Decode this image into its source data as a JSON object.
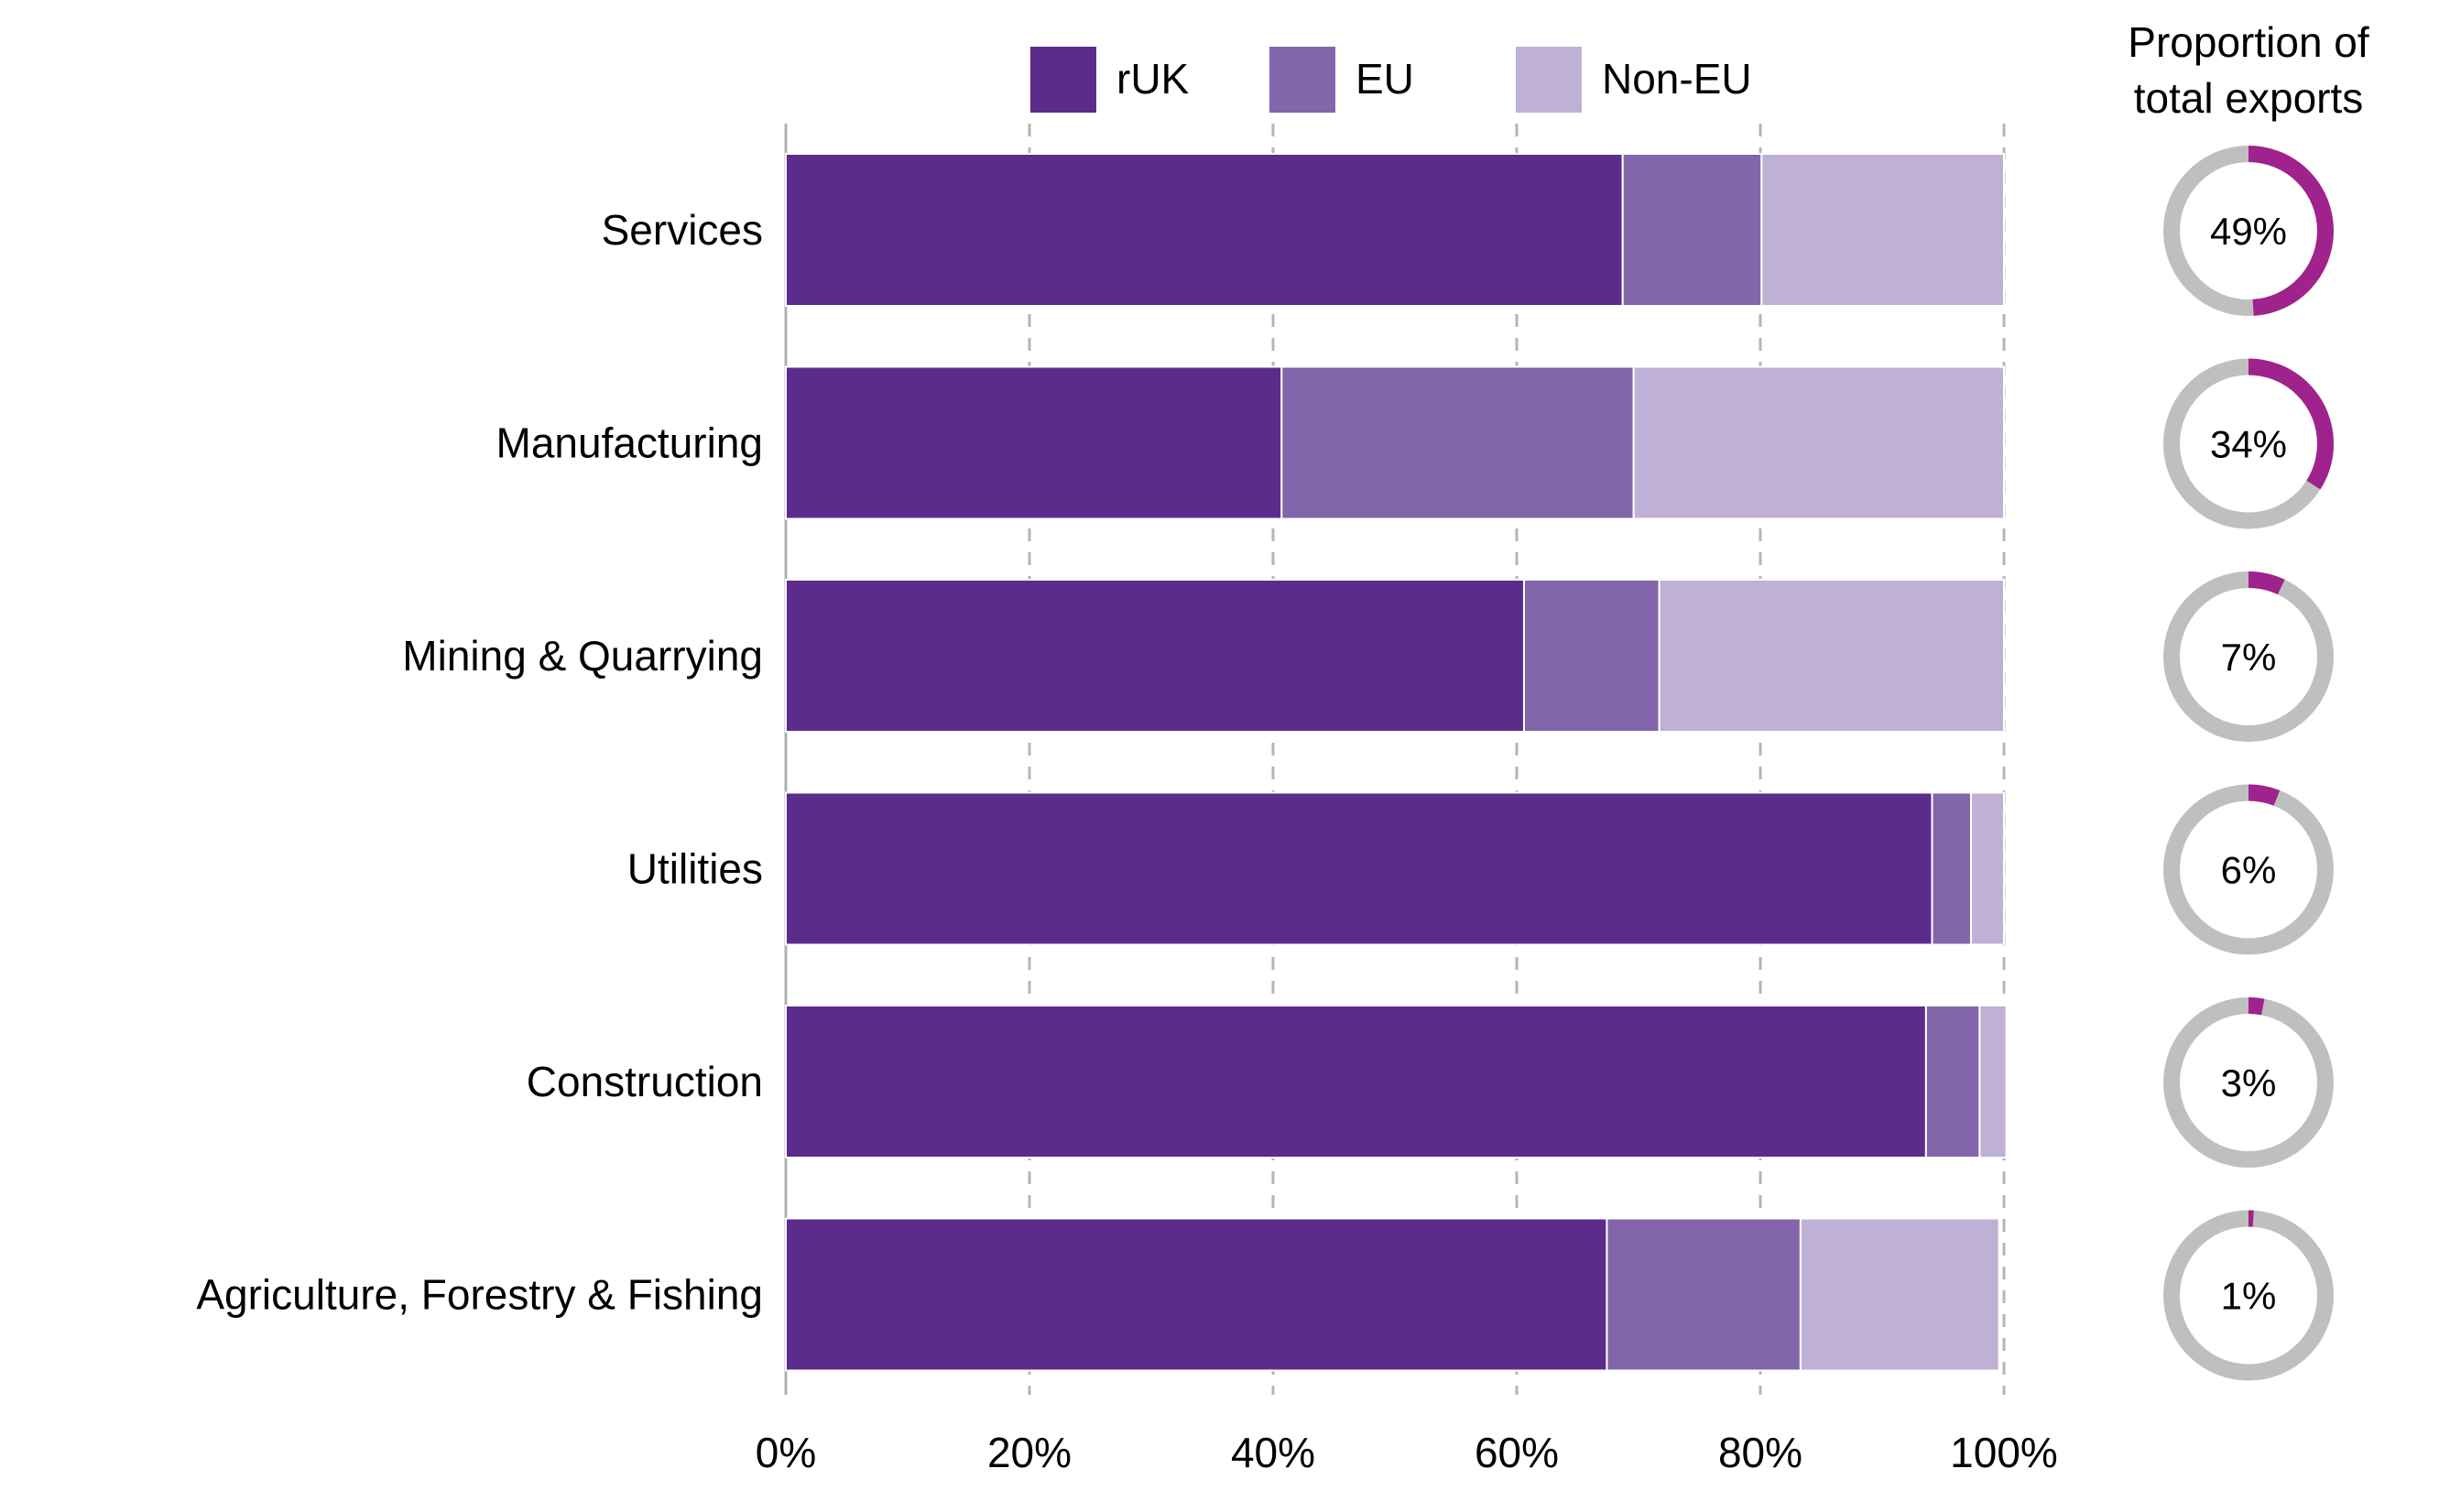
{
  "chart_data": [
    {
      "type": "bar",
      "orientation": "horizontal",
      "stacked": true,
      "categories": [
        "Services",
        "Manufacturing",
        "Mining & Quarrying",
        "Utilities",
        "Construction",
        "Agriculture, Forestry & Fishing"
      ],
      "series": [
        {
          "name": "rUK",
          "color": "#5b2c8c",
          "values": [
            68.7,
            40.7,
            60.6,
            94.1,
            93.6,
            67.4
          ]
        },
        {
          "name": "EU",
          "color": "#8265aa",
          "values": [
            11.4,
            28.9,
            11.1,
            3.2,
            4.4,
            15.9
          ]
        },
        {
          "name": "Non-EU",
          "color": "#bfb0d6",
          "values": [
            19.9,
            30.4,
            28.3,
            2.7,
            2.2,
            16.3
          ]
        }
      ],
      "xlim": [
        0,
        100
      ],
      "x_ticks": [
        0,
        20,
        40,
        60,
        80,
        100
      ],
      "x_tick_labels": [
        "0%",
        "20%",
        "40%",
        "60%",
        "80%",
        "100%"
      ],
      "grid": "vertical dashed",
      "legend_position": "top"
    },
    {
      "type": "pie",
      "subtype": "donut",
      "title_lines": [
        "Proportion of",
        "total exports"
      ],
      "categories": [
        "Services",
        "Manufacturing",
        "Mining & Quarrying",
        "Utilities",
        "Construction",
        "Agriculture, Forestry & Fishing"
      ],
      "values": [
        49,
        34,
        7,
        6,
        3,
        1
      ],
      "labels": [
        "49%",
        "34%",
        "7%",
        "6%",
        "3%",
        "1%"
      ],
      "highlight_color": "#a0228c",
      "track_color": "#bfbfbf"
    }
  ]
}
